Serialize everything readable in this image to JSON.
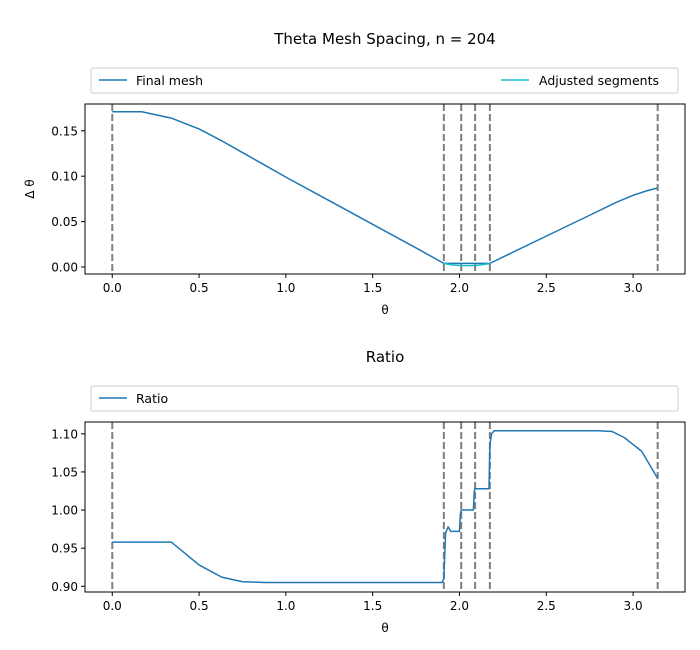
{
  "colors": {
    "final_mesh": "#1f77b4",
    "adjusted": "#17becf",
    "ratio": "#1f77b4",
    "vline": "#7f7f7f"
  },
  "chart_data": [
    {
      "type": "line",
      "title": "Theta Mesh Spacing, n = 204",
      "xlabel": "θ",
      "ylabel": "Δ θ",
      "xlim": [
        -0.157,
        3.299
      ],
      "ylim": [
        -0.0077,
        0.1795
      ],
      "xticks": [
        0.0,
        0.5,
        1.0,
        1.5,
        2.0,
        2.5,
        3.0
      ],
      "xtick_labels": [
        "0.0",
        "0.5",
        "1.0",
        "1.5",
        "2.0",
        "2.5",
        "3.0"
      ],
      "yticks": [
        0.0,
        0.05,
        0.1,
        0.15
      ],
      "ytick_labels": [
        "0.00",
        "0.05",
        "0.10",
        "0.15"
      ],
      "legend": {
        "placement": "top",
        "entries": [
          "Final mesh",
          "Adjusted segments"
        ]
      },
      "vlines": [
        0.0,
        1.91,
        2.01,
        2.09,
        2.175,
        3.1416
      ],
      "series": [
        {
          "name": "Final mesh",
          "color_key": "final_mesh",
          "x": [
            0.0,
            0.17,
            0.34,
            0.5,
            0.63,
            0.75,
            0.88,
            1.0,
            1.25,
            1.5,
            1.75,
            1.91,
            2.175,
            2.5,
            2.75,
            2.9,
            3.0,
            3.08,
            3.1416
          ],
          "y": [
            0.171,
            0.171,
            0.164,
            0.152,
            0.139,
            0.126,
            0.112,
            0.099,
            0.073,
            0.047,
            0.021,
            0.004,
            0.004,
            0.034,
            0.057,
            0.071,
            0.079,
            0.084,
            0.087
          ]
        },
        {
          "name": "Adjusted segments",
          "color_key": "adjusted",
          "x": [
            1.91,
            1.95,
            2.0,
            2.05,
            2.1,
            2.15,
            2.175
          ],
          "y": [
            0.004,
            0.0025,
            0.0017,
            0.0015,
            0.0018,
            0.003,
            0.004
          ]
        }
      ]
    },
    {
      "type": "line",
      "title": "Ratio",
      "xlabel": "θ",
      "ylabel": "",
      "xlim": [
        -0.157,
        3.299
      ],
      "ylim": [
        0.8925,
        1.1155
      ],
      "xticks": [
        0.0,
        0.5,
        1.0,
        1.5,
        2.0,
        2.5,
        3.0
      ],
      "xtick_labels": [
        "0.0",
        "0.5",
        "1.0",
        "1.5",
        "2.0",
        "2.5",
        "3.0"
      ],
      "yticks": [
        0.9,
        0.95,
        1.0,
        1.05,
        1.1
      ],
      "ytick_labels": [
        "0.90",
        "0.95",
        "1.00",
        "1.05",
        "1.10"
      ],
      "legend": {
        "placement": "top",
        "entries": [
          "Ratio"
        ]
      },
      "vlines": [
        0.0,
        1.91,
        2.01,
        2.09,
        2.175,
        3.1416
      ],
      "series": [
        {
          "name": "Ratio",
          "color_key": "ratio",
          "x": [
            0.0,
            0.34,
            0.5,
            0.63,
            0.75,
            0.88,
            1.0,
            1.5,
            1.9,
            1.91,
            1.92,
            1.935,
            1.95,
            2.0,
            2.005,
            2.01,
            2.08,
            2.085,
            2.09,
            2.17,
            2.175,
            2.185,
            2.2,
            2.8,
            2.88,
            2.95,
            3.05,
            3.14
          ],
          "y": [
            0.958,
            0.958,
            0.928,
            0.912,
            0.906,
            0.905,
            0.905,
            0.905,
            0.905,
            0.91,
            0.97,
            0.978,
            0.972,
            0.972,
            0.995,
            1.0,
            1.0,
            1.025,
            1.028,
            1.028,
            1.085,
            1.1,
            1.104,
            1.104,
            1.103,
            1.095,
            1.077,
            1.042
          ]
        }
      ]
    }
  ]
}
